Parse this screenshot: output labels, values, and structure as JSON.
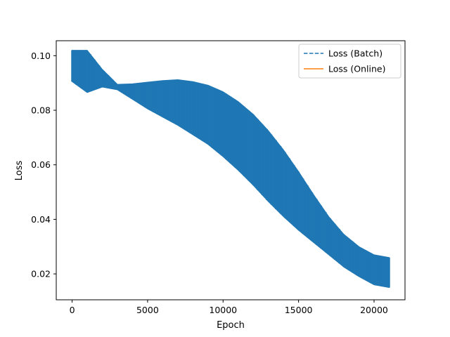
{
  "chart_data": {
    "type": "line",
    "title": "",
    "xlabel": "Epoch",
    "ylabel": "Loss",
    "xlim": [
      -1050,
      22050
    ],
    "ylim": [
      0.0105,
      0.1055
    ],
    "xticks": [
      0,
      5000,
      10000,
      15000,
      20000
    ],
    "yticks": [
      0.02,
      0.04,
      0.06,
      0.08,
      0.1
    ],
    "xtick_labels": [
      "0",
      "5000",
      "10000",
      "15000",
      "20000"
    ],
    "ytick_labels": [
      "0.02",
      "0.04",
      "0.06",
      "0.08",
      "0.10"
    ],
    "grid": false,
    "legend_position": "top-right",
    "series": [
      {
        "name": "Loss (Batch)",
        "style": "dashed",
        "color": "#1f77b4",
        "x": [
          0,
          1000,
          2000,
          3000,
          4000,
          5000,
          6000,
          7000,
          8000,
          9000,
          10000,
          11000,
          12000,
          13000,
          14000,
          15000,
          16000,
          17000,
          18000,
          19000,
          20000,
          21000
        ],
        "upper": [
          0.102,
          0.102,
          0.095,
          0.0895,
          0.0897,
          0.0903,
          0.0909,
          0.0912,
          0.0905,
          0.0892,
          0.0868,
          0.0832,
          0.0785,
          0.0725,
          0.0655,
          0.0575,
          0.049,
          0.041,
          0.0345,
          0.03,
          0.027,
          0.026
        ],
        "lower": [
          0.0905,
          0.0865,
          0.0885,
          0.0875,
          0.084,
          0.0805,
          0.0775,
          0.0745,
          0.071,
          0.0675,
          0.063,
          0.058,
          0.0525,
          0.0465,
          0.041,
          0.036,
          0.0315,
          0.027,
          0.0225,
          0.019,
          0.016,
          0.015
        ]
      },
      {
        "name": "Loss (Online)",
        "style": "solid",
        "color": "#ff7f0e",
        "x": [],
        "y": []
      }
    ]
  },
  "colors": {
    "fill": "#1f77b4",
    "axes": "#000000",
    "background": "#ffffff"
  }
}
